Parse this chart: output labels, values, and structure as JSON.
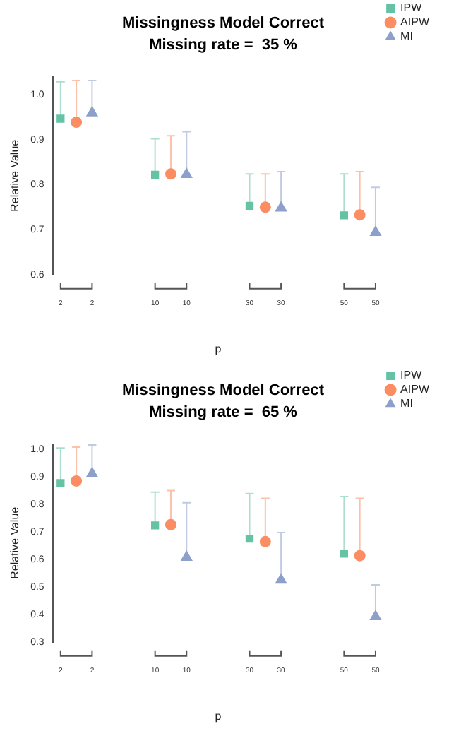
{
  "chart_data": [
    {
      "type": "scatter",
      "title": "Missingness Model Correct",
      "subtitle": "Missing rate =  35 %",
      "xlabel": "p",
      "ylabel": "Relative Value",
      "categories": [
        "2",
        null,
        "2",
        null,
        null,
        null,
        "10",
        null,
        "10",
        null,
        null,
        null,
        "30",
        null,
        "30",
        null,
        null,
        null,
        "50",
        null,
        "50"
      ],
      "ylim": [
        0.6,
        1.04
      ],
      "yticks": [
        0.6,
        0.7,
        0.8,
        0.9,
        {
          "value": 1.0,
          "label": "1.0"
        }
      ],
      "grid": false,
      "legend": "top right",
      "series": [
        {
          "name": "IPW",
          "color": "#66c2a5",
          "marker": "square",
          "values": [
            0.947,
            null,
            null,
            null,
            null,
            null,
            0.822,
            null,
            null,
            null,
            null,
            null,
            0.753,
            null,
            null,
            null,
            null,
            null,
            0.732,
            null,
            null
          ],
          "errors": [
            [
              0.947,
              1.029
            ],
            null,
            null,
            null,
            null,
            null,
            [
              0.822,
              0.902
            ],
            null,
            null,
            null,
            null,
            null,
            [
              0.753,
              0.824
            ],
            null,
            null,
            null,
            null,
            null,
            [
              0.732,
              0.824
            ],
            null,
            null
          ]
        },
        {
          "name": "AIPW",
          "color": "#fc8d62",
          "marker": "circle",
          "values": [
            null,
            0.939,
            null,
            null,
            null,
            null,
            null,
            0.824,
            null,
            null,
            null,
            null,
            null,
            0.75,
            null,
            null,
            null,
            null,
            null,
            0.733,
            null
          ],
          "errors": [
            null,
            [
              0.939,
              1.032
            ],
            null,
            null,
            null,
            null,
            null,
            [
              0.824,
              0.909
            ],
            null,
            null,
            null,
            null,
            null,
            [
              0.75,
              0.824
            ],
            null,
            null,
            null,
            null,
            null,
            [
              0.733,
              0.829
            ],
            null
          ]
        },
        {
          "name": "MI",
          "color": "#8da0cb",
          "marker": "triangle",
          "values": [
            null,
            null,
            0.96,
            null,
            null,
            null,
            null,
            null,
            0.823,
            null,
            null,
            null,
            null,
            null,
            0.748,
            null,
            null,
            null,
            null,
            null,
            0.694
          ],
          "errors": [
            null,
            null,
            [
              0.96,
              1.032
            ],
            null,
            null,
            null,
            null,
            null,
            [
              0.823,
              0.918
            ],
            null,
            null,
            null,
            null,
            null,
            [
              0.748,
              0.829
            ],
            null,
            null,
            null,
            null,
            null,
            [
              0.694,
              0.794
            ]
          ]
        }
      ]
    },
    {
      "type": "scatter",
      "title": "Missingness Model Correct",
      "subtitle": "Missing rate =  65 %",
      "xlabel": "p",
      "ylabel": "Relative Value",
      "categories": [
        "2",
        null,
        "2",
        null,
        null,
        null,
        "10",
        null,
        "10",
        null,
        null,
        null,
        "30",
        null,
        "30",
        null,
        null,
        null,
        "50",
        null,
        "50"
      ],
      "ylim": [
        0.3,
        1.02
      ],
      "yticks": [
        0.3,
        0.4,
        0.5,
        0.6,
        0.7,
        0.8,
        0.9,
        {
          "value": 1.0,
          "label": "1.0"
        }
      ],
      "grid": false,
      "legend": "top right",
      "series": [
        {
          "name": "IPW",
          "color": "#66c2a5",
          "marker": "square",
          "values": [
            0.878,
            null,
            null,
            null,
            null,
            null,
            0.724,
            null,
            null,
            null,
            null,
            null,
            0.676,
            null,
            null,
            null,
            null,
            null,
            0.621,
            null,
            null
          ],
          "errors": [
            [
              0.878,
              1.006
            ],
            null,
            null,
            null,
            null,
            null,
            [
              0.724,
              0.845
            ],
            null,
            null,
            null,
            null,
            null,
            [
              0.676,
              0.84
            ],
            null,
            null,
            null,
            null,
            null,
            [
              0.621,
              0.829
            ],
            null,
            null
          ]
        },
        {
          "name": "AIPW",
          "color": "#fc8d62",
          "marker": "circle",
          "values": [
            null,
            0.886,
            null,
            null,
            null,
            null,
            null,
            0.727,
            null,
            null,
            null,
            null,
            null,
            0.665,
            null,
            null,
            null,
            null,
            null,
            0.614,
            null
          ],
          "errors": [
            null,
            [
              0.886,
              1.009
            ],
            null,
            null,
            null,
            null,
            null,
            [
              0.727,
              0.851
            ],
            null,
            null,
            null,
            null,
            null,
            [
              0.665,
              0.823
            ],
            null,
            null,
            null,
            null,
            null,
            [
              0.614,
              0.823
            ],
            null
          ]
        },
        {
          "name": "MI",
          "color": "#8da0cb",
          "marker": "triangle",
          "values": [
            null,
            null,
            0.913,
            null,
            null,
            null,
            null,
            null,
            0.608,
            null,
            null,
            null,
            null,
            null,
            0.525,
            null,
            null,
            null,
            null,
            null,
            0.392
          ],
          "errors": [
            null,
            null,
            [
              0.913,
              1.017
            ],
            null,
            null,
            null,
            null,
            null,
            [
              0.608,
              0.807
            ],
            null,
            null,
            null,
            null,
            null,
            [
              0.525,
              0.698
            ],
            null,
            null,
            null,
            null,
            null,
            [
              0.392,
              0.508
            ]
          ]
        }
      ]
    }
  ]
}
